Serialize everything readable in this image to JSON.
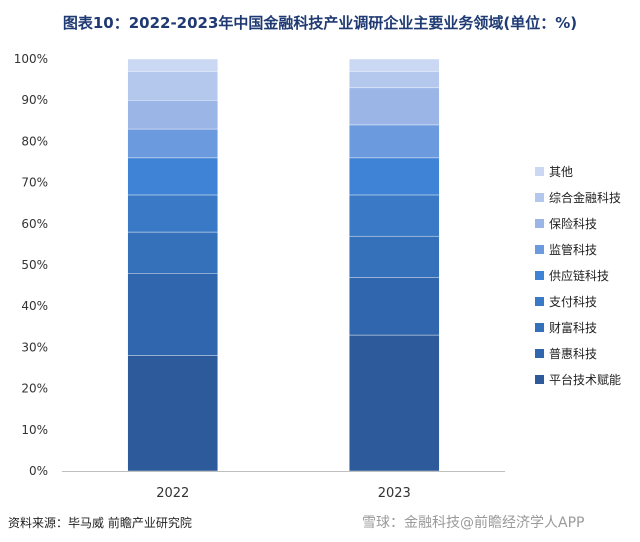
{
  "chart_data": {
    "type": "bar",
    "stacked": true,
    "title": "图表10：2022-2023年中国金融科技产业调研企业主要业务领域(单位：%)",
    "categories": [
      "2022",
      "2023"
    ],
    "ylim": [
      0,
      100
    ],
    "yticks": [
      "0%",
      "10%",
      "20%",
      "30%",
      "40%",
      "50%",
      "60%",
      "70%",
      "80%",
      "90%",
      "100%"
    ],
    "legend_position": "right",
    "grid": false,
    "series": [
      {
        "name": "平台技术赋能",
        "color": "#2c5a9a",
        "values": [
          28,
          33
        ]
      },
      {
        "name": "普惠科技",
        "color": "#3066ad",
        "values": [
          20,
          14
        ]
      },
      {
        "name": "财富科技",
        "color": "#3570ba",
        "values": [
          10,
          10
        ]
      },
      {
        "name": "支付科技",
        "color": "#3a79c6",
        "values": [
          9,
          10
        ]
      },
      {
        "name": "供应链科技",
        "color": "#3f83d6",
        "values": [
          9,
          9
        ]
      },
      {
        "name": "监管科技",
        "color": "#6c9ade",
        "values": [
          7,
          8
        ]
      },
      {
        "name": "保险科技",
        "color": "#9ab5e6",
        "values": [
          7,
          9
        ]
      },
      {
        "name": "综合金融科技",
        "color": "#b4c7ed",
        "values": [
          7,
          4
        ]
      },
      {
        "name": "其他",
        "color": "#cbd8f3",
        "values": [
          3,
          3
        ]
      }
    ]
  },
  "source_text": "资料来源：毕马威 前瞻产业研究院",
  "footer_brand": "雪球：金融科技@前瞻经济学人APP"
}
